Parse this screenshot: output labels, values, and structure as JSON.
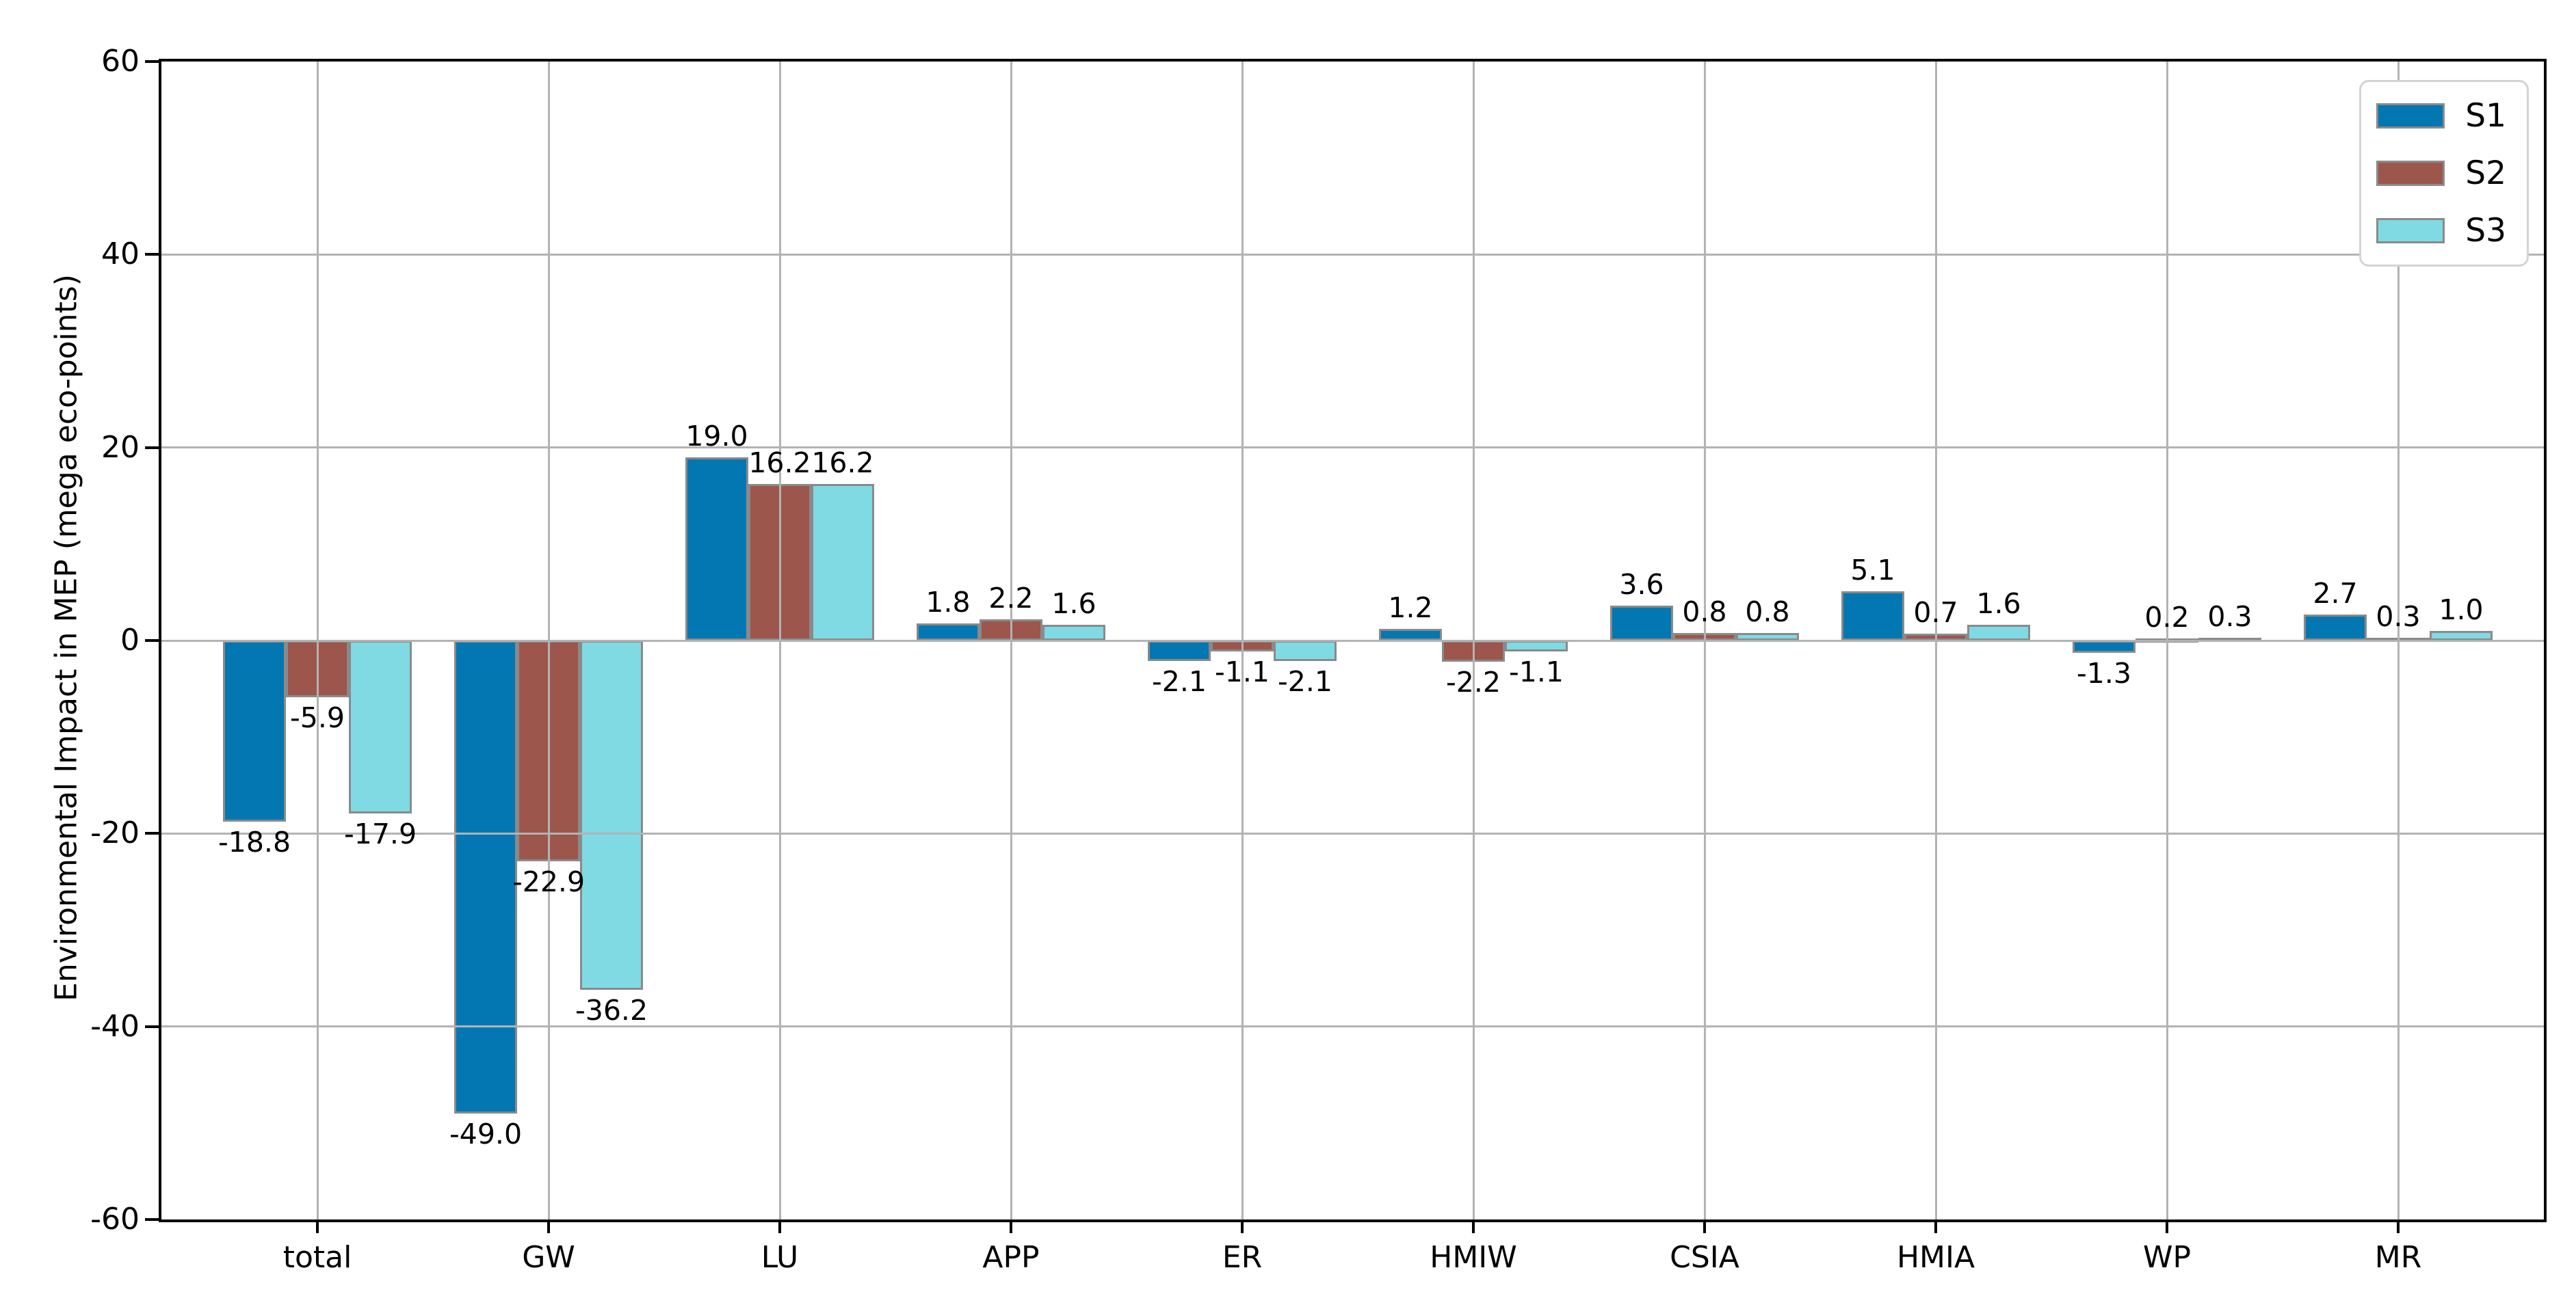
{
  "chart_data": {
    "type": "bar",
    "title": "",
    "categories": [
      "total",
      "GW",
      "LU",
      "APP",
      "ER",
      "HMIW",
      "CSIA",
      "HMIA",
      "WP",
      "MR"
    ],
    "series": [
      {
        "name": "S1",
        "color": "#0277b2",
        "values": [
          -18.8,
          -49.0,
          19.0,
          1.8,
          -2.1,
          1.2,
          3.6,
          5.1,
          -1.3,
          2.7
        ]
      },
      {
        "name": "S2",
        "color": "#9d564c",
        "values": [
          -5.9,
          -22.9,
          16.2,
          2.2,
          -1.1,
          -2.2,
          0.8,
          0.7,
          0.2,
          0.3
        ]
      },
      {
        "name": "S3",
        "color": "#7fdae4",
        "values": [
          -17.9,
          -36.2,
          16.2,
          1.6,
          -2.1,
          -1.1,
          0.8,
          1.6,
          0.3,
          1.0
        ]
      }
    ],
    "bar_value_labels": [
      [
        "-18.8",
        "-5.9",
        "-17.9"
      ],
      [
        "-49.0",
        "-22.9",
        "-36.2"
      ],
      [
        "19.0",
        "16.2",
        "16.2"
      ],
      [
        "1.8",
        "2.2",
        "1.6"
      ],
      [
        "-2.1",
        "-1.1",
        "-2.1"
      ],
      [
        "1.2",
        "-2.2",
        "-1.1"
      ],
      [
        "3.6",
        "0.8",
        "0.8"
      ],
      [
        "5.1",
        "0.7",
        "1.6"
      ],
      [
        "-1.3",
        "0.2",
        "0.3"
      ],
      [
        "2.7",
        "0.3",
        "1.0"
      ]
    ],
    "xlabel": "",
    "ylabel": "Environmental Impact in MEP (mega eco-points)",
    "ylim": [
      -60,
      60
    ],
    "yticks": [
      60,
      40,
      20,
      0,
      -20,
      -40,
      -60
    ],
    "grid": true,
    "grid_over_bars": true,
    "grid_color": "#b3b3b3",
    "bar_edge_color": "#8a8a8a",
    "legend_position": "upper right",
    "legend_entries": [
      "S1",
      "S2",
      "S3"
    ]
  }
}
